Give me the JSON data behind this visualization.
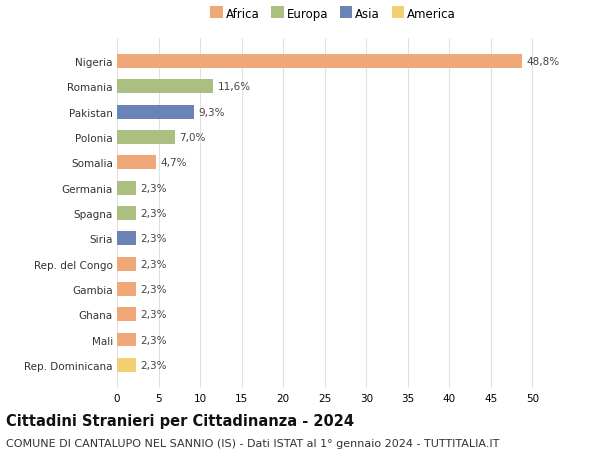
{
  "countries": [
    "Nigeria",
    "Romania",
    "Pakistan",
    "Polonia",
    "Somalia",
    "Germania",
    "Spagna",
    "Siria",
    "Rep. del Congo",
    "Gambia",
    "Ghana",
    "Mali",
    "Rep. Dominicana"
  ],
  "values": [
    48.8,
    11.6,
    9.3,
    7.0,
    4.7,
    2.3,
    2.3,
    2.3,
    2.3,
    2.3,
    2.3,
    2.3,
    2.3
  ],
  "labels": [
    "48,8%",
    "11,6%",
    "9,3%",
    "7,0%",
    "4,7%",
    "2,3%",
    "2,3%",
    "2,3%",
    "2,3%",
    "2,3%",
    "2,3%",
    "2,3%",
    "2,3%"
  ],
  "continents": [
    "Africa",
    "Europa",
    "Asia",
    "Europa",
    "Africa",
    "Europa",
    "Europa",
    "Asia",
    "Africa",
    "Africa",
    "Africa",
    "Africa",
    "America"
  ],
  "colors": {
    "Africa": "#F0A878",
    "Europa": "#AABF80",
    "Asia": "#6B82B5",
    "America": "#F0D070"
  },
  "legend_order": [
    "Africa",
    "Europa",
    "Asia",
    "America"
  ],
  "title": "Cittadini Stranieri per Cittadinanza - 2024",
  "subtitle": "COMUNE DI CANTALUPO NEL SANNIO (IS) - Dati ISTAT al 1° gennaio 2024 - TUTTITALIA.IT",
  "xlim": [
    0,
    52
  ],
  "xticks": [
    0,
    5,
    10,
    15,
    20,
    25,
    30,
    35,
    40,
    45,
    50
  ],
  "background_color": "#ffffff",
  "grid_color": "#e0e0e0",
  "title_fontsize": 10.5,
  "subtitle_fontsize": 8,
  "label_fontsize": 7.5,
  "tick_fontsize": 7.5,
  "legend_fontsize": 8.5,
  "bar_height": 0.55
}
